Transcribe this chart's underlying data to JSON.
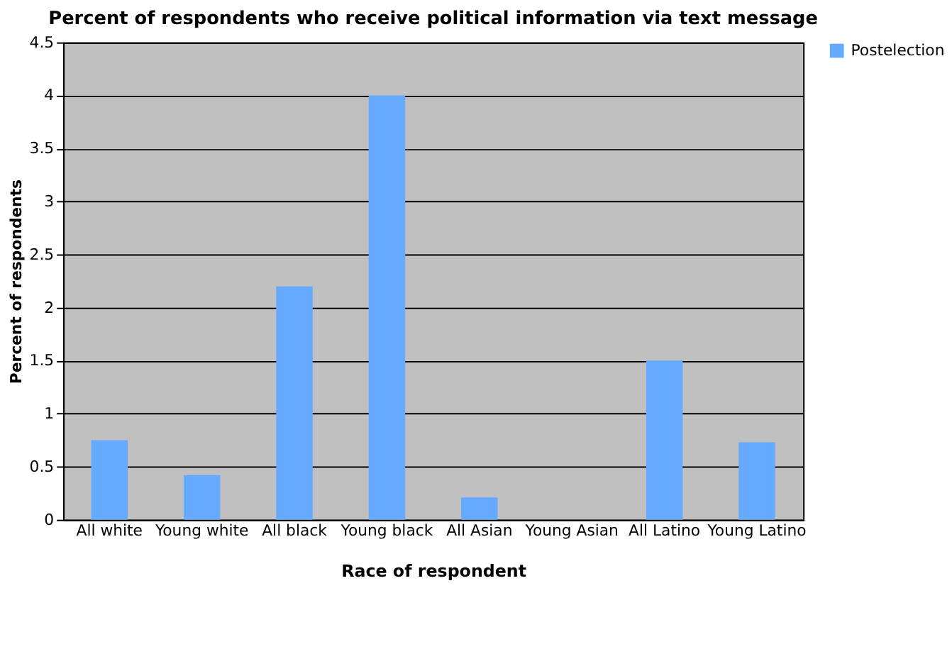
{
  "chart_data": {
    "type": "bar",
    "title": "Percent of respondents who receive political information via text message",
    "xlabel": "Race of respondent",
    "ylabel": "Percent of respondents",
    "categories": [
      "All white",
      "Young white",
      "All black",
      "Young black",
      "All Asian",
      "Young Asian",
      "All Latino",
      "Young Latino"
    ],
    "series": [
      {
        "name": "Postelection",
        "color": "#66aaff",
        "values": [
          0.75,
          0.42,
          2.2,
          4.0,
          0.21,
          0,
          1.5,
          0.73
        ]
      }
    ],
    "ylim": [
      0,
      4.5
    ],
    "yticks": [
      0,
      0.5,
      1,
      1.5,
      2,
      2.5,
      3,
      3.5,
      4,
      4.5
    ],
    "grid": "y",
    "legend": "right"
  }
}
